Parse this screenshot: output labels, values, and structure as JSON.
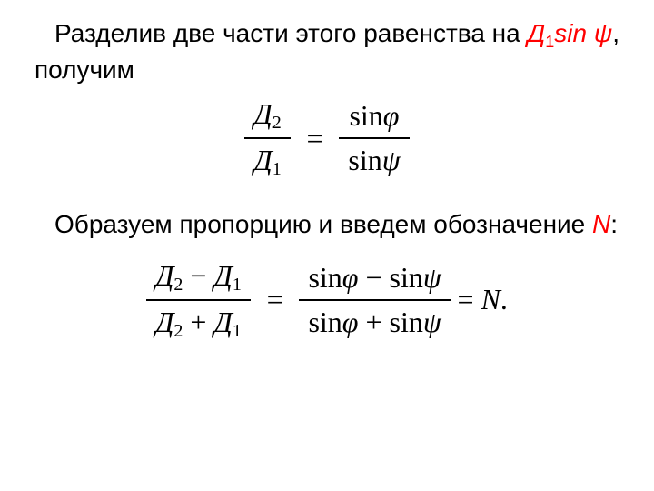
{
  "colors": {
    "text": "#000000",
    "accent": "#ff0000",
    "background": "#ffffff"
  },
  "typography": {
    "body_font": "Arial",
    "math_font": "Times New Roman",
    "body_fontsize_pt": 21,
    "math_fontsize_pt": 24
  },
  "para1": {
    "pre": "Разделив две части этого равенства на ",
    "term_D": "Д",
    "term_sub": "1",
    "term_sin": "sin ",
    "term_psi": "ψ",
    "post": ", получим"
  },
  "eq1": {
    "lhs_num": "Д",
    "lhs_num_sub": "2",
    "lhs_den": "Д",
    "lhs_den_sub": "1",
    "op": "=",
    "rhs_num_fn": "sin",
    "rhs_num_arg": "φ",
    "rhs_den_fn": "sin",
    "rhs_den_arg": "ψ"
  },
  "para2": {
    "pre": "Образуем пропорцию и введем обозначение ",
    "N": "N",
    "post": ":"
  },
  "eq2": {
    "lhs_num_a": "Д",
    "lhs_num_a_sub": "2",
    "lhs_num_minus": " − ",
    "lhs_num_b": "Д",
    "lhs_num_b_sub": "1",
    "lhs_den_a": "Д",
    "lhs_den_a_sub": "2",
    "lhs_den_plus": " + ",
    "lhs_den_b": "Д",
    "lhs_den_b_sub": "1",
    "op1": "=",
    "rhs_num_fn1": "sin",
    "rhs_num_arg1": "φ",
    "rhs_num_minus": " − ",
    "rhs_num_fn2": "sin",
    "rhs_num_arg2": "ψ",
    "rhs_den_fn1": "sin",
    "rhs_den_arg1": "φ",
    "rhs_den_plus": " + ",
    "rhs_den_fn2": "sin",
    "rhs_den_arg2": "ψ",
    "op2": " = ",
    "tail_N": "N",
    "tail_dot": "."
  }
}
